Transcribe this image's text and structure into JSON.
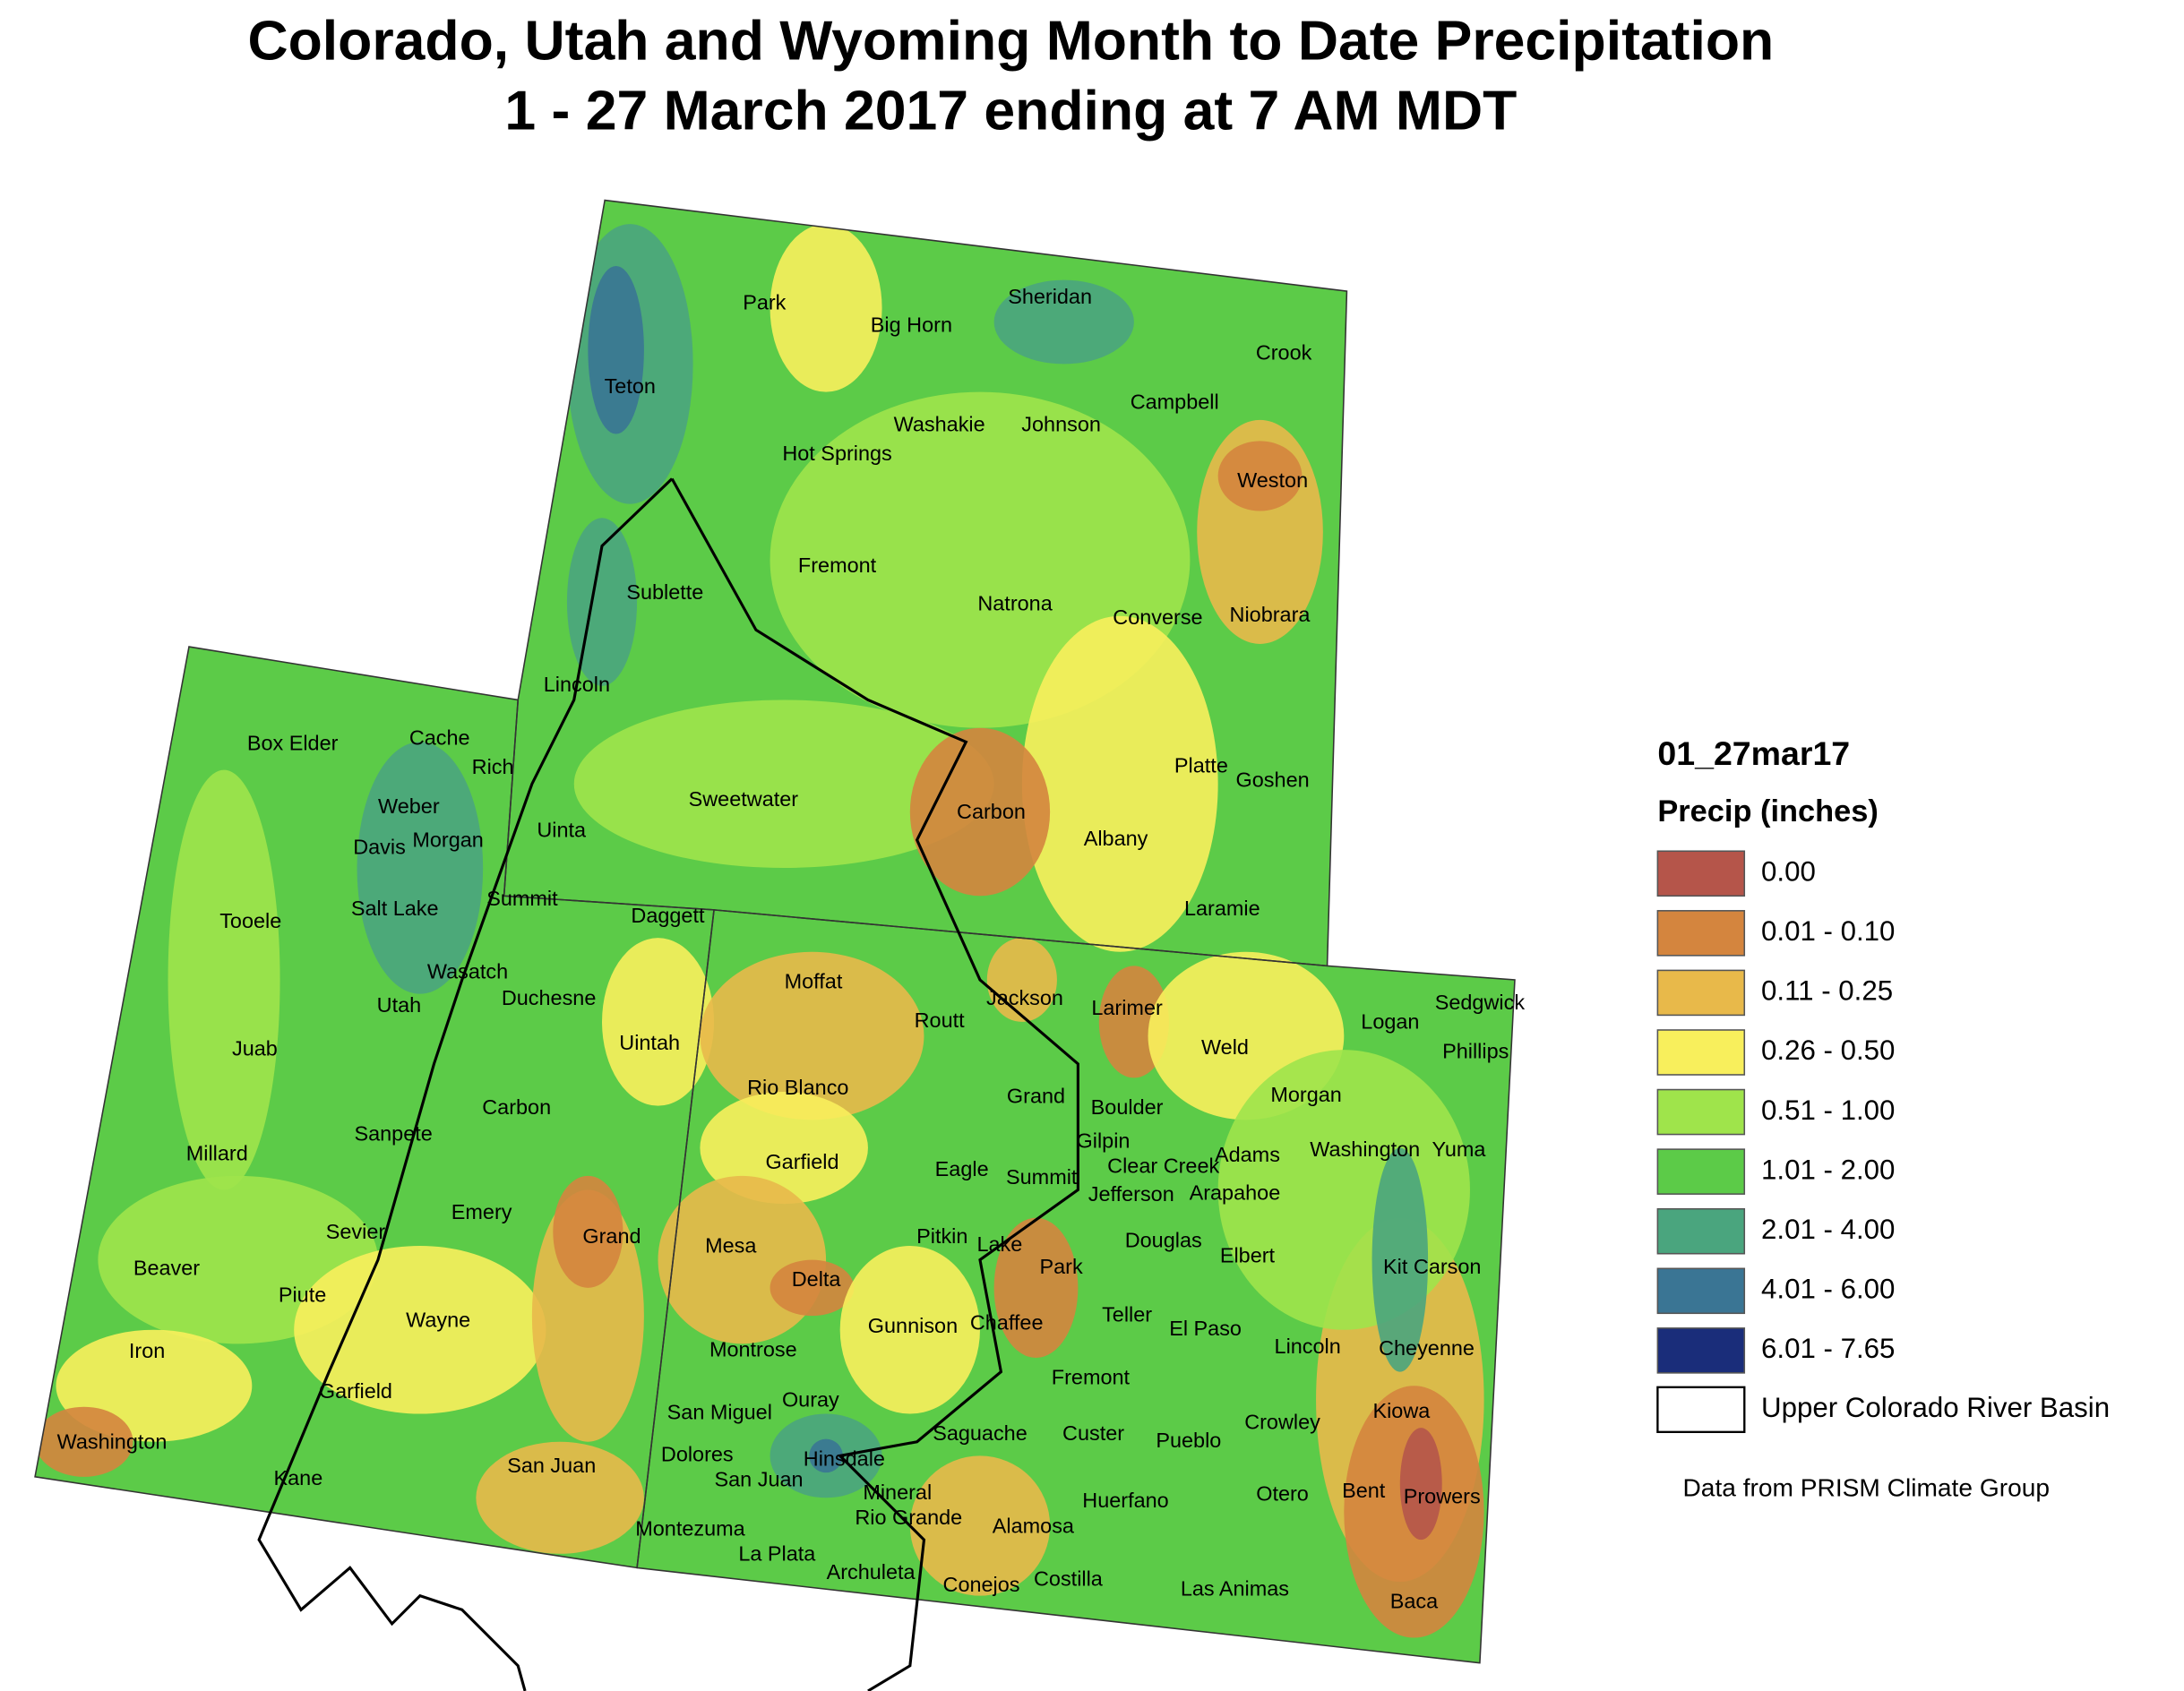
{
  "header": {
    "title": "Colorado, Utah and Wyoming Month to Date Precipitation",
    "subtitle": "1 - 27 March 2017 ending at 7 AM MDT"
  },
  "map": {
    "counties": [
      "Park",
      "Big Horn",
      "Sheridan",
      "Crook",
      "Teton",
      "Washakie",
      "Johnson",
      "Campbell",
      "Hot Springs",
      "Weston",
      "Fremont",
      "Sublette",
      "Natrona",
      "Converse",
      "Niobrara",
      "Lincoln",
      "Platte",
      "Goshen",
      "Sweetwater",
      "Carbon",
      "Albany",
      "Uinta",
      "Laramie",
      "Box Elder",
      "Cache",
      "Rich",
      "Weber",
      "Davis",
      "Morgan",
      "Tooele",
      "Salt Lake",
      "Summit",
      "Daggett",
      "Wasatch",
      "Duchesne",
      "Utah",
      "Uintah",
      "Juab",
      "Carbon",
      "Sanpete",
      "Millard",
      "Emery",
      "Sevier",
      "Grand",
      "Beaver",
      "Piute",
      "Wayne",
      "Iron",
      "Garfield",
      "Washington",
      "Kane",
      "San Juan",
      "Moffat",
      "Jackson",
      "Larimer",
      "Routt",
      "Logan",
      "Sedgwick",
      "Phillips",
      "Weld",
      "Rio Blanco",
      "Grand",
      "Boulder",
      "Morgan",
      "Garfield",
      "Gilpin",
      "Clear Creek",
      "Adams",
      "Washington",
      "Yuma",
      "Eagle",
      "Summit",
      "Jefferson",
      "Arapahoe",
      "Douglas",
      "Pitkin",
      "Lake",
      "Mesa",
      "Delta",
      "Elbert",
      "Kit Carson",
      "Park",
      "Teller",
      "Gunnison",
      "Chaffee",
      "El Paso",
      "Montrose",
      "Lincoln",
      "Cheyenne",
      "Fremont",
      "Ouray",
      "San Miguel",
      "Kiowa",
      "Crowley",
      "Saguache",
      "Custer",
      "Pueblo",
      "Dolores",
      "Hinsdale",
      "San Juan",
      "Mineral",
      "Bent",
      "Prowers",
      "Otero",
      "Huerfano",
      "Rio Grande",
      "Alamosa",
      "Montezuma",
      "La Plata",
      "Archuleta",
      "Conejos",
      "Costilla",
      "Las Animas",
      "Baca"
    ]
  },
  "legend": {
    "title": "01_27mar17",
    "subtitle": "Precip (inches)",
    "items": [
      {
        "label": "0.00",
        "color": "#b5554a"
      },
      {
        "label": "0.01 - 0.10",
        "color": "#d4853e"
      },
      {
        "label": "0.11 - 0.25",
        "color": "#e8b94a"
      },
      {
        "label": "0.26 - 0.50",
        "color": "#f8ef5c"
      },
      {
        "label": "0.51 - 1.00",
        "color": "#9fe44b"
      },
      {
        "label": "1.01 - 2.00",
        "color": "#5ccb48"
      },
      {
        "label": "2.01 - 4.00",
        "color": "#4aa57e"
      },
      {
        "label": "4.01 - 6.00",
        "color": "#3a7594"
      },
      {
        "label": "6.01 - 7.65",
        "color": "#1a2d7a"
      }
    ],
    "basin_label": "Upper Colorado River Basin"
  },
  "source": "Data from PRISM Climate Group"
}
